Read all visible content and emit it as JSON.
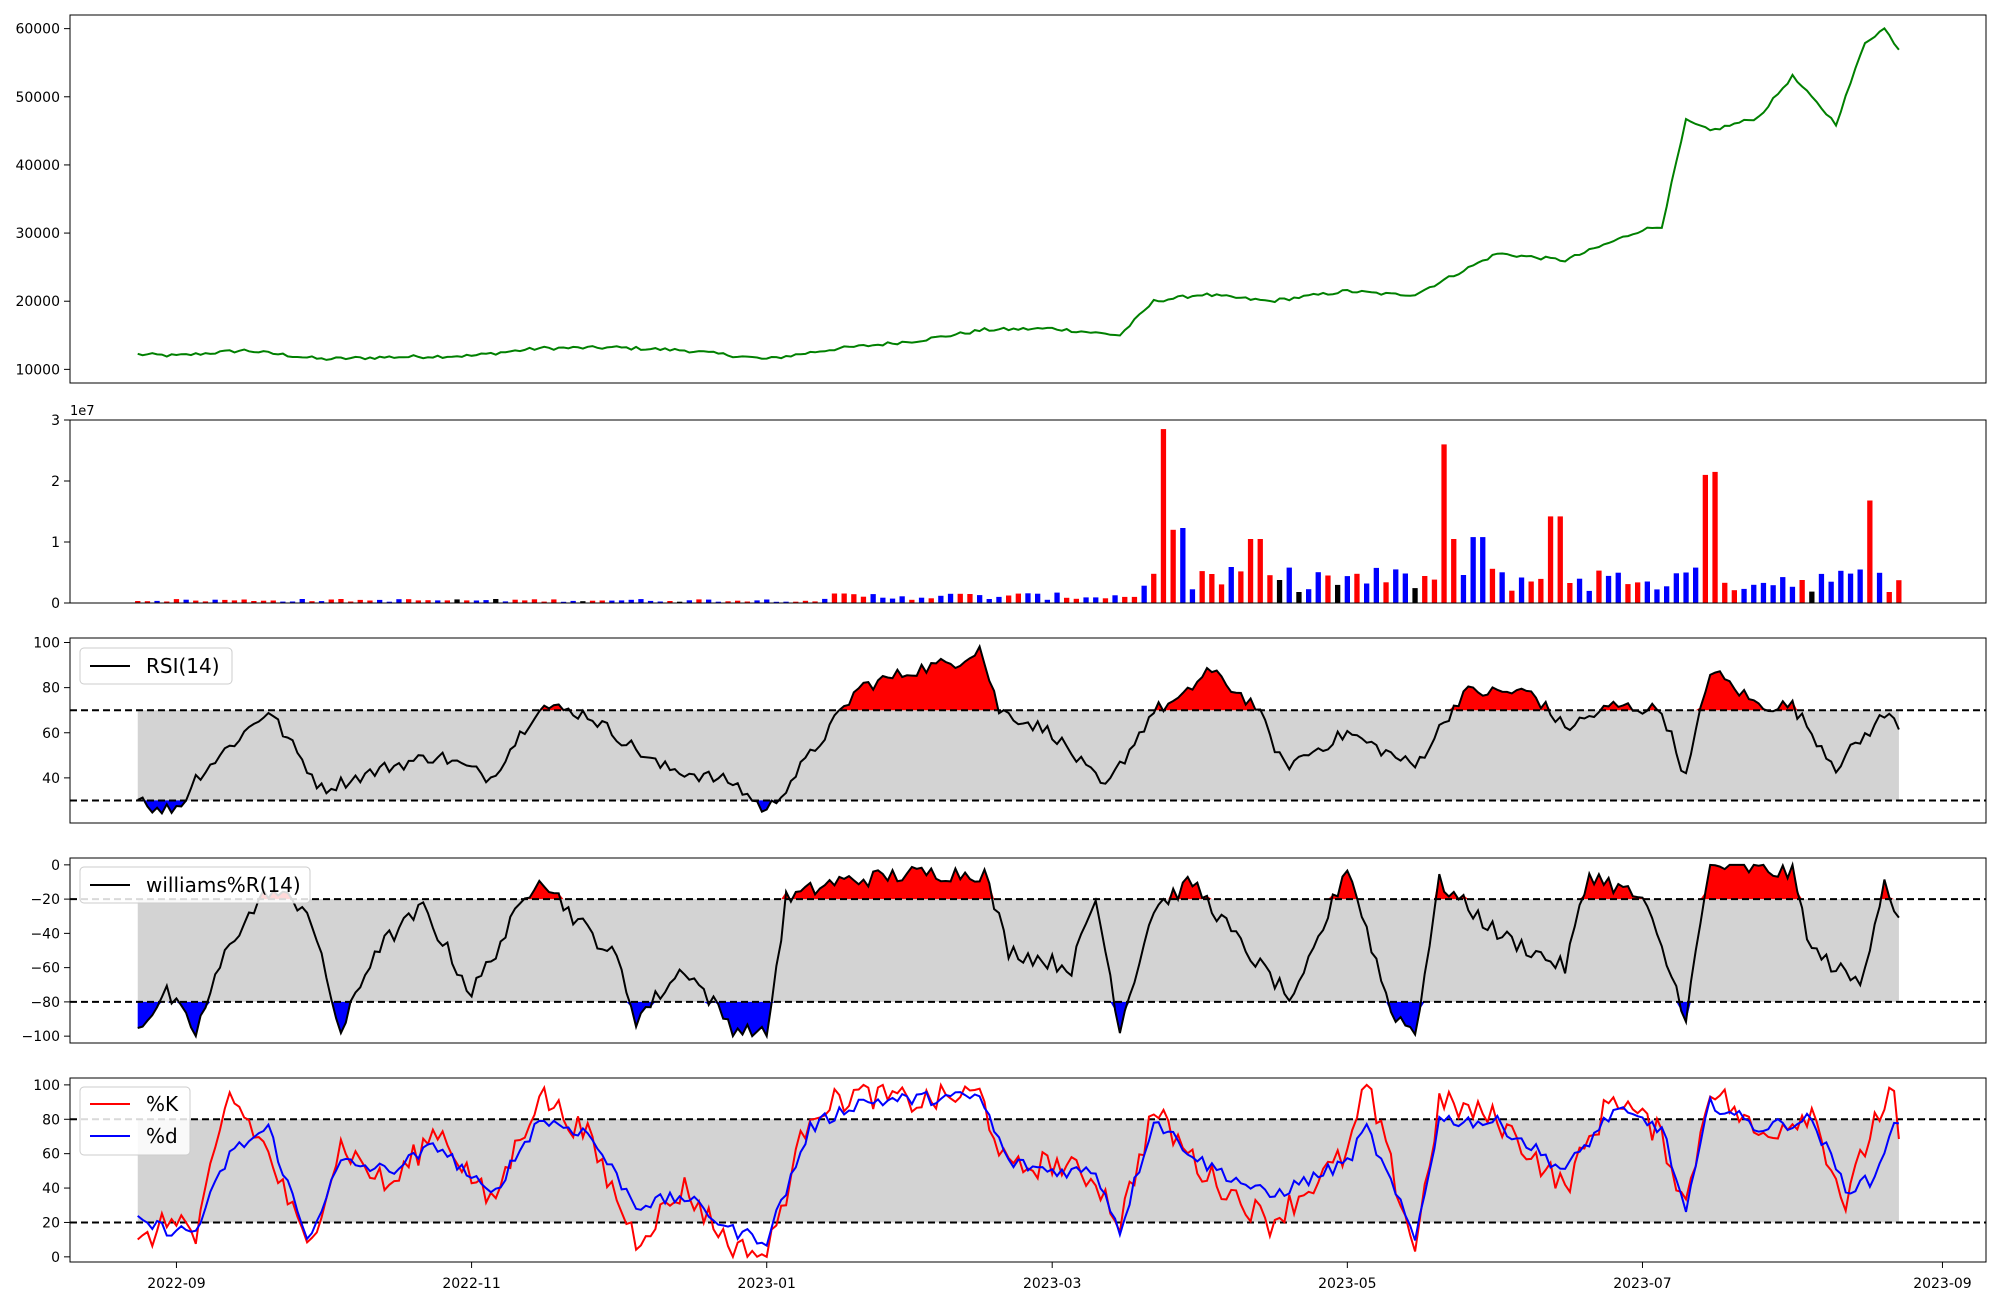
{
  "chart_data": [
    {
      "type": "line",
      "name": "price-panel",
      "ylim": [
        8000,
        62000
      ],
      "yticks": [
        "10000",
        "20000",
        "30000",
        "40000",
        "50000",
        "60000"
      ],
      "ytick_values": [
        10000,
        20000,
        30000,
        40000,
        50000,
        60000
      ],
      "color": "#008000",
      "x": [
        "2022-08-24",
        "2022-09-01",
        "2022-09-15",
        "2022-10-01",
        "2022-10-15",
        "2022-11-01",
        "2022-11-15",
        "2022-12-01",
        "2022-12-15",
        "2023-01-01",
        "2023-01-15",
        "2023-02-01",
        "2023-02-15",
        "2023-03-01",
        "2023-03-15",
        "2023-03-22",
        "2023-04-01",
        "2023-04-15",
        "2023-05-01",
        "2023-05-10",
        "2023-05-15",
        "2023-06-01",
        "2023-06-15",
        "2023-07-01",
        "2023-07-05",
        "2023-07-10",
        "2023-07-15",
        "2023-07-25",
        "2023-08-01",
        "2023-08-10",
        "2023-08-16",
        "2023-08-20",
        "2023-08-23"
      ],
      "values": [
        12200,
        12000,
        12800,
        11500,
        11800,
        12000,
        13100,
        13200,
        12800,
        11500,
        13000,
        14200,
        15800,
        16000,
        15000,
        20000,
        21000,
        20000,
        21500,
        21000,
        21000,
        27000,
        26000,
        30500,
        31000,
        46500,
        45000,
        47000,
        53000,
        46000,
        58000,
        60000,
        57000
      ]
    },
    {
      "type": "bar",
      "name": "volume-panel",
      "offset_label": "1e7",
      "ylim": [
        0,
        3
      ],
      "yticks": [
        "0",
        "1",
        "2",
        "3"
      ],
      "ytick_values": [
        0,
        1,
        2,
        3
      ],
      "up_color": "#ff0000",
      "down_color": "#0000ff",
      "flat_color": "#000000",
      "peaks": [
        {
          "x": "2023-03-24",
          "value": 2.85,
          "color": "red"
        },
        {
          "x": "2023-03-25",
          "value": 1.2,
          "color": "red"
        },
        {
          "x": "2023-03-28",
          "value": 1.23,
          "color": "blue"
        },
        {
          "x": "2023-04-12",
          "value": 1.05,
          "color": "red"
        },
        {
          "x": "2023-05-22",
          "value": 2.6,
          "color": "red"
        },
        {
          "x": "2023-05-23",
          "value": 1.05,
          "color": "red"
        },
        {
          "x": "2023-05-28",
          "value": 1.08,
          "color": "blue"
        },
        {
          "x": "2023-06-13",
          "value": 1.42,
          "color": "red"
        },
        {
          "x": "2023-07-14",
          "value": 2.1,
          "color": "red"
        },
        {
          "x": "2023-07-15",
          "value": 2.15,
          "color": "red"
        },
        {
          "x": "2023-08-17",
          "value": 1.68,
          "color": "red"
        }
      ]
    },
    {
      "type": "line",
      "name": "rsi-panel",
      "ylim": [
        20,
        102
      ],
      "yticks": [
        "40",
        "60",
        "80",
        "100"
      ],
      "ytick_values": [
        40,
        60,
        80,
        100
      ],
      "upper": 70,
      "lower": 30,
      "legend": "RSI(14)",
      "legend_position": "upper-left",
      "x": [
        "2022-08-24",
        "2022-08-28",
        "2022-09-02",
        "2022-09-05",
        "2022-09-20",
        "2022-10-01",
        "2022-10-15",
        "2022-10-25",
        "2022-11-05",
        "2022-11-15",
        "2022-11-25",
        "2022-12-10",
        "2022-12-25",
        "2023-01-01",
        "2023-01-10",
        "2023-01-20",
        "2023-02-01",
        "2023-02-10",
        "2023-02-14",
        "2023-02-18",
        "2023-03-01",
        "2023-03-12",
        "2023-03-22",
        "2023-03-28",
        "2023-04-02",
        "2023-04-12",
        "2023-04-18",
        "2023-05-01",
        "2023-05-15",
        "2023-05-25",
        "2023-06-08",
        "2023-06-15",
        "2023-06-25",
        "2023-07-05",
        "2023-07-10",
        "2023-07-15",
        "2023-07-25",
        "2023-08-01",
        "2023-08-10",
        "2023-08-20",
        "2023-08-23"
      ],
      "values": [
        33,
        25,
        28,
        40,
        70,
        35,
        45,
        50,
        40,
        72,
        68,
        45,
        38,
        25,
        50,
        80,
        88,
        92,
        98,
        70,
        60,
        35,
        70,
        75,
        88,
        72,
        45,
        60,
        45,
        78,
        78,
        62,
        72,
        70,
        40,
        88,
        72,
        72,
        45,
        68,
        64
      ]
    },
    {
      "type": "line",
      "name": "williams-panel",
      "ylim": [
        -104,
        4
      ],
      "yticks": [
        "0",
        "−20",
        "−40",
        "−60",
        "−80",
        "−100"
      ],
      "ytick_values": [
        0,
        -20,
        -40,
        -60,
        -80,
        -100
      ],
      "upper": -20,
      "lower": -80,
      "legend": "williams%R(14)",
      "legend_position": "upper-left",
      "x": [
        "2022-08-24",
        "2022-08-30",
        "2022-09-05",
        "2022-09-12",
        "2022-09-20",
        "2022-09-28",
        "2022-10-05",
        "2022-10-12",
        "2022-10-22",
        "2022-11-01",
        "2022-11-15",
        "2022-11-22",
        "2022-12-01",
        "2022-12-05",
        "2022-12-15",
        "2022-12-25",
        "2023-01-01",
        "2023-01-05",
        "2023-01-15",
        "2023-02-01",
        "2023-02-15",
        "2023-02-20",
        "2023-03-05",
        "2023-03-10",
        "2023-03-15",
        "2023-03-22",
        "2023-03-30",
        "2023-04-10",
        "2023-04-20",
        "2023-05-01",
        "2023-05-10",
        "2023-05-15",
        "2023-05-20",
        "2023-06-01",
        "2023-06-15",
        "2023-06-20",
        "2023-07-01",
        "2023-07-05",
        "2023-07-10",
        "2023-07-15",
        "2023-08-01",
        "2023-08-05",
        "2023-08-15",
        "2023-08-20",
        "2023-08-23"
      ],
      "values": [
        -95,
        -75,
        -98,
        -45,
        -15,
        -25,
        -98,
        -50,
        -25,
        -75,
        -5,
        -30,
        -55,
        -90,
        -60,
        -95,
        -100,
        -20,
        -10,
        -5,
        -5,
        -50,
        -60,
        -20,
        -95,
        -25,
        -10,
        -50,
        -80,
        0,
        -85,
        -98,
        -10,
        -40,
        -60,
        -5,
        -20,
        -50,
        -88,
        0,
        -5,
        -50,
        -70,
        -8,
        -33
      ]
    },
    {
      "type": "line",
      "name": "stochastic-panel",
      "ylim": [
        -3,
        104
      ],
      "yticks": [
        "0",
        "20",
        "40",
        "60",
        "80",
        "100"
      ],
      "ytick_values": [
        0,
        20,
        40,
        60,
        80,
        100
      ],
      "upper": 80,
      "lower": 20,
      "xticks": [
        "2022-09",
        "2022-11",
        "2023-01",
        "2023-03",
        "2023-05",
        "2023-07",
        "2023-09"
      ],
      "xtick_values": [
        "2022-09-01",
        "2022-11-01",
        "2023-01-01",
        "2023-03-01",
        "2023-05-01",
        "2023-07-01",
        "2023-09-01"
      ],
      "series": [
        {
          "name": "%K",
          "color": "#ff0000",
          "x": [
            "2022-08-24",
            "2022-09-01",
            "2022-09-05",
            "2022-09-12",
            "2022-09-20",
            "2022-09-28",
            "2022-10-05",
            "2022-10-15",
            "2022-10-25",
            "2022-11-05",
            "2022-11-15",
            "2022-11-25",
            "2022-12-05",
            "2022-12-15",
            "2022-12-25",
            "2023-01-01",
            "2023-01-10",
            "2023-01-20",
            "2023-02-01",
            "2023-02-14",
            "2023-02-20",
            "2023-03-01",
            "2023-03-10",
            "2023-03-15",
            "2023-03-22",
            "2023-04-01",
            "2023-04-15",
            "2023-05-01",
            "2023-05-05",
            "2023-05-15",
            "2023-05-20",
            "2023-06-01",
            "2023-06-15",
            "2023-06-25",
            "2023-07-05",
            "2023-07-10",
            "2023-07-15",
            "2023-07-25",
            "2023-08-05",
            "2023-08-12",
            "2023-08-18",
            "2023-08-22",
            "2023-08-23"
          ],
          "values": [
            5,
            25,
            10,
            95,
            60,
            5,
            65,
            40,
            75,
            30,
            95,
            70,
            10,
            40,
            5,
            0,
            85,
            95,
            90,
            95,
            50,
            55,
            45,
            20,
            85,
            50,
            20,
            60,
            100,
            5,
            90,
            80,
            40,
            95,
            70,
            30,
            100,
            70,
            85,
            30,
            80,
            95,
            65
          ]
        },
        {
          "name": "%d",
          "color": "#0000ff",
          "x": [
            "2022-08-24",
            "2022-09-01",
            "2022-09-05",
            "2022-09-12",
            "2022-09-20",
            "2022-09-28",
            "2022-10-05",
            "2022-10-15",
            "2022-10-25",
            "2022-11-05",
            "2022-11-15",
            "2022-11-25",
            "2022-12-05",
            "2022-12-15",
            "2022-12-25",
            "2023-01-01",
            "2023-01-10",
            "2023-01-20",
            "2023-02-01",
            "2023-02-14",
            "2023-02-20",
            "2023-03-01",
            "2023-03-10",
            "2023-03-15",
            "2023-03-22",
            "2023-04-01",
            "2023-04-15",
            "2023-05-01",
            "2023-05-05",
            "2023-05-15",
            "2023-05-20",
            "2023-06-01",
            "2023-06-15",
            "2023-06-25",
            "2023-07-05",
            "2023-07-10",
            "2023-07-15",
            "2023-07-25",
            "2023-08-05",
            "2023-08-12",
            "2023-08-18",
            "2023-08-22",
            "2023-08-23"
          ],
          "values": [
            20,
            15,
            15,
            60,
            75,
            10,
            55,
            50,
            65,
            35,
            80,
            72,
            30,
            35,
            15,
            10,
            75,
            90,
            92,
            93,
            55,
            50,
            50,
            15,
            80,
            55,
            35,
            55,
            75,
            10,
            80,
            78,
            50,
            85,
            75,
            25,
            90,
            75,
            80,
            40,
            45,
            80,
            75
          ]
        }
      ]
    }
  ]
}
